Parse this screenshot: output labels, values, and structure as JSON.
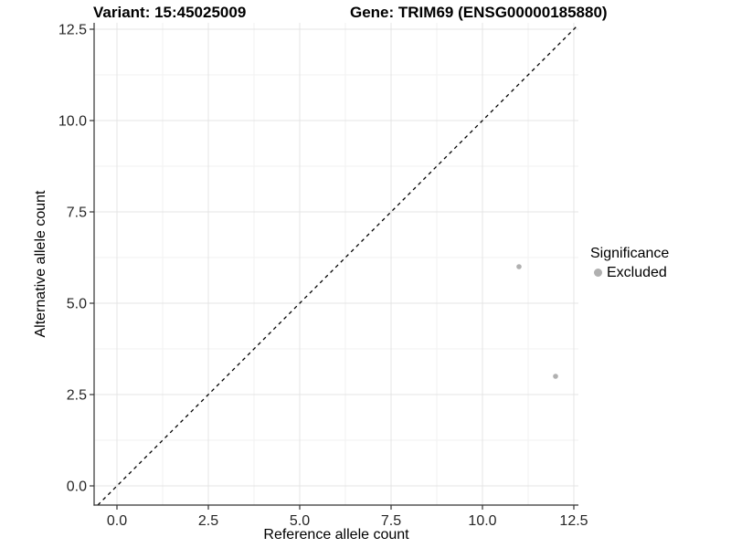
{
  "chart_data": {
    "type": "scatter",
    "titles": {
      "variant": "Variant: 15:45025009",
      "gene": "Gene: TRIM69 (ENSG00000185880)"
    },
    "xlabel": "Reference allele count",
    "ylabel": "Alternative allele count",
    "xlim": [
      0,
      12.5
    ],
    "ylim": [
      0,
      12.5
    ],
    "x_ticks": {
      "values": [
        0,
        2.5,
        5,
        7.5,
        10,
        12.5
      ],
      "labels": [
        "0.0",
        "2.5",
        "5.0",
        "7.5",
        "10.0",
        "12.5"
      ]
    },
    "y_ticks": {
      "values": [
        0,
        2.5,
        5,
        7.5,
        10,
        12.5
      ],
      "labels": [
        "0.0",
        "2.5",
        "5.0",
        "7.5",
        "10.0",
        "12.5"
      ]
    },
    "minor_tick_values": [
      1.25,
      3.75,
      6.25,
      8.75,
      11.25
    ],
    "grid": {
      "major": true,
      "minor": true
    },
    "identity_line": {
      "style": "dashed",
      "slope": 1,
      "intercept": 0,
      "color": "#000000"
    },
    "series": [
      {
        "name": "Excluded",
        "color": "#b0b0b0",
        "points": [
          {
            "x": 11,
            "y": 6
          },
          {
            "x": 12,
            "y": 3
          }
        ]
      }
    ],
    "legend": {
      "title": "Significance",
      "position": "right",
      "items": [
        {
          "label": "Excluded",
          "color": "#b0b0b0",
          "marker": "circle"
        }
      ]
    },
    "colors": {
      "background": "#ffffff",
      "major_grid": "#e4e4e4",
      "minor_grid": "#f2f2f2",
      "axis_line": "#333333",
      "tick_mark": "#333333",
      "tick_label": "#262626",
      "point": "#b0b0b0"
    }
  }
}
